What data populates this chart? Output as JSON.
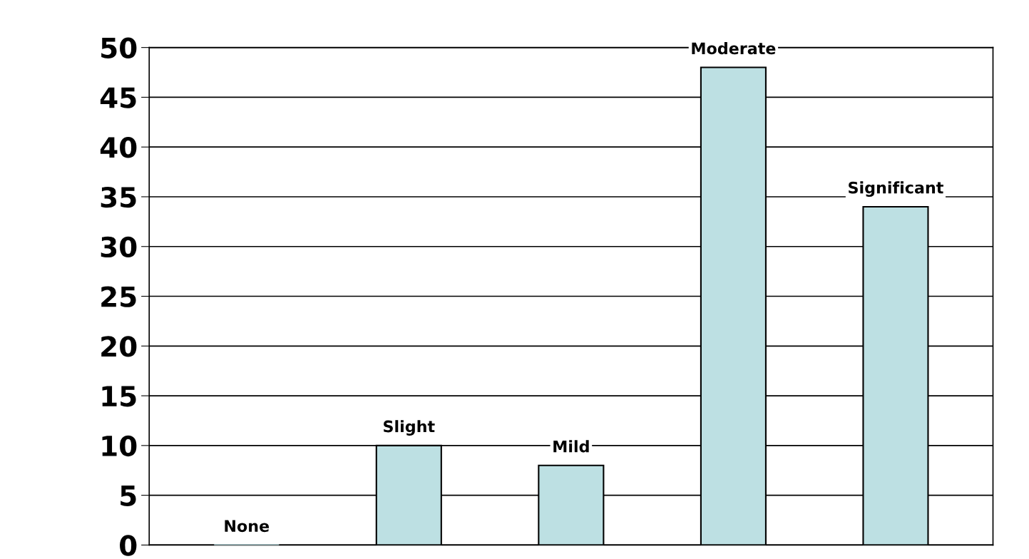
{
  "chart_data": {
    "type": "bar",
    "categories": [
      "None",
      "Slight",
      "Mild",
      "Moderate",
      "Significant"
    ],
    "values": [
      0,
      10,
      8,
      48,
      34
    ],
    "color": "#bde0e3",
    "ylim": [
      0,
      50
    ],
    "yticks": [
      0,
      5,
      10,
      15,
      20,
      25,
      30,
      35,
      40,
      45,
      50
    ],
    "grid": "y"
  }
}
